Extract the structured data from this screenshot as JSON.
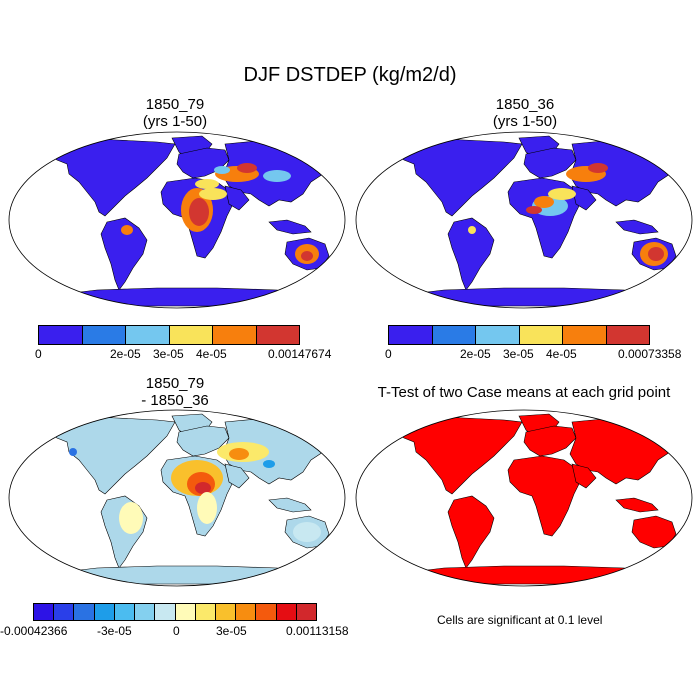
{
  "title": "DJF DSTDEP (kg/m2/d)",
  "panels": [
    {
      "title1": "1850_79",
      "title2": "(yrs 1-50)",
      "colorbar": {
        "colors": [
          "#3a1fee",
          "#2a7be6",
          "#74c7ef",
          "#f9e35a",
          "#f77f0d",
          "#d23630"
        ],
        "labels": [
          "0",
          "2e-05",
          "3e-05",
          "4e-05",
          "0.00147674"
        ]
      }
    },
    {
      "title1": "1850_36",
      "title2": "(yrs 1-50)",
      "colorbar": {
        "colors": [
          "#3a1fee",
          "#2a7be6",
          "#74c7ef",
          "#f9e35a",
          "#f77f0d",
          "#d23630"
        ],
        "labels": [
          "0",
          "2e-05",
          "3e-05",
          "4e-05",
          "0.00073358"
        ]
      }
    },
    {
      "title1": "1850_79",
      "title2": "- 1850_36",
      "colorbar": {
        "colors": [
          "#2d13e6",
          "#2a3fe9",
          "#2a72e3",
          "#1e9de9",
          "#4bbcf0",
          "#84d0ef",
          "#c8e8f1",
          "#fffbb8",
          "#fbe96a",
          "#f9c02c",
          "#f78d10",
          "#f45a0d",
          "#e50d13",
          "#d2282c"
        ],
        "labels": [
          "-0.00042366",
          "-3e-05",
          "0",
          "3e-05",
          "0.00113158"
        ]
      }
    },
    {
      "title1": "T-Test of two Case means at each grid point",
      "note": "Cells are significant at 0.1 level"
    }
  ],
  "colors": {
    "ocean": "#ffffff",
    "coast": "#000000",
    "land_low": "#3a1fee",
    "diff_base": "#add8ea",
    "ttest": "#ff0000"
  }
}
